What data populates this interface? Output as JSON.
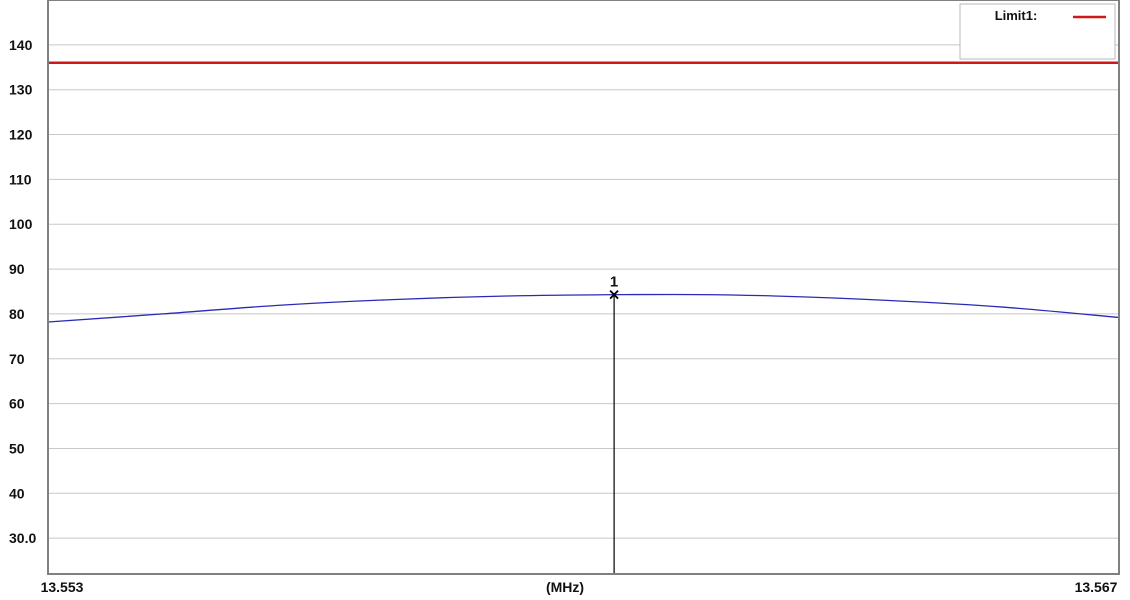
{
  "chart_data": {
    "type": "line",
    "xlabel": "(MHz)",
    "xlim": [
      13.553,
      13.567
    ],
    "ylim": [
      22,
      150
    ],
    "x_tick_labels": [
      "13.553",
      "13.567"
    ],
    "y_ticks": [
      30,
      40,
      50,
      60,
      70,
      80,
      90,
      100,
      110,
      120,
      130,
      140
    ],
    "y_tick_labels": [
      "30.0",
      "40",
      "50",
      "60",
      "70",
      "80",
      "90",
      "100",
      "110",
      "120",
      "130",
      "140"
    ],
    "grid": true,
    "series": [
      {
        "color": "#2a2ab8",
        "x": [
          13.553,
          13.5545,
          13.556,
          13.5575,
          13.559,
          13.5605,
          13.5615,
          13.5625,
          13.564,
          13.5655,
          13.567
        ],
        "y": [
          78.2,
          80.0,
          81.9,
          83.2,
          84.0,
          84.3,
          84.3,
          84.0,
          83.0,
          81.5,
          79.2
        ]
      }
    ],
    "limit_lines": [
      {
        "name": "Limit1:",
        "y": 136,
        "color": "#d01818"
      }
    ],
    "markers": [
      {
        "label": "1",
        "x": 13.5604,
        "y": 84.3
      }
    ],
    "legend": {
      "position": "top-right",
      "entries": [
        {
          "label": "Limit1:",
          "color": "#d01818"
        }
      ]
    }
  }
}
